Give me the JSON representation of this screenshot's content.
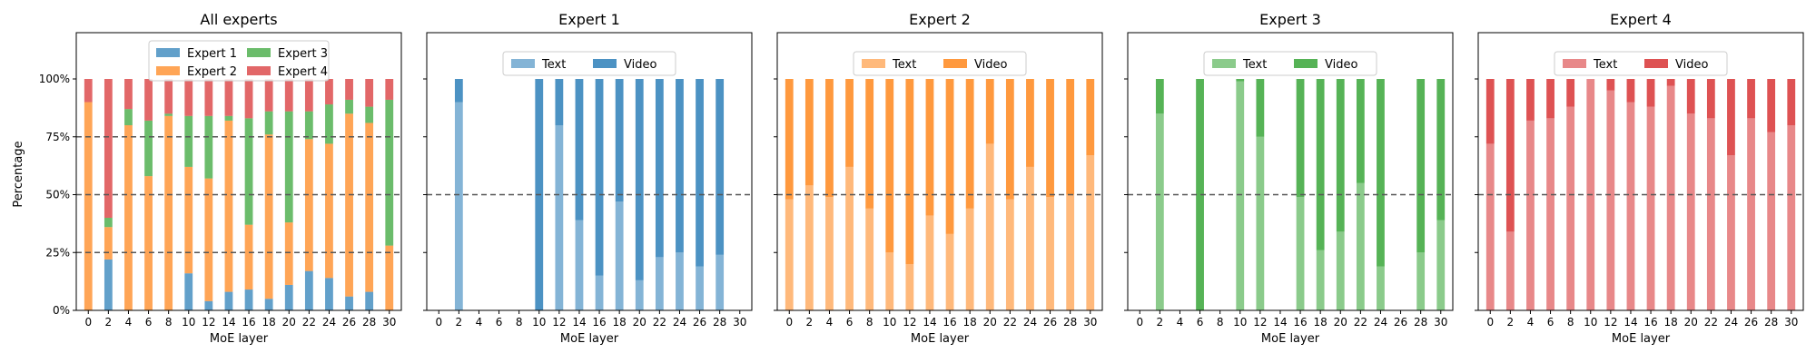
{
  "figure": {
    "ylabel": "Percentage"
  },
  "colors": {
    "expert1": "#1f77b4",
    "expert2": "#ff7f0e",
    "expert3": "#2ca02c",
    "expert4": "#d62728"
  },
  "chart_data": [
    {
      "type": "bar",
      "stacked": true,
      "title": "All experts",
      "xlabel": "MoE layer",
      "ylabel": "Percentage",
      "ylim": [
        0,
        1.2
      ],
      "yticks": [
        "0%",
        "25%",
        "50%",
        "75%",
        "100%"
      ],
      "xticks": [
        "0",
        "2",
        "4",
        "6",
        "8",
        "10",
        "12",
        "14",
        "16",
        "18",
        "20",
        "22",
        "24",
        "26",
        "28",
        "30"
      ],
      "x": [
        0,
        1,
        2,
        3,
        4,
        5,
        6,
        7,
        8,
        9,
        10,
        11,
        12,
        13,
        14,
        15,
        16,
        17,
        18,
        19,
        20,
        21,
        22,
        23,
        24,
        25,
        26,
        27,
        28,
        29,
        30,
        31
      ],
      "legend": {
        "placement": "top-center",
        "columns": 2,
        "entries": [
          "Expert 1",
          "Expert 2",
          "Expert 3",
          "Expert 4"
        ]
      },
      "series": [
        {
          "name": "Expert 1",
          "color": "#1f77b4",
          "values": [
            0,
            0,
            0.22,
            0,
            0,
            0,
            0,
            0,
            0,
            0,
            0.16,
            0,
            0.04,
            0,
            0.08,
            0,
            0.09,
            0,
            0.05,
            0,
            0.11,
            0,
            0.17,
            0,
            0.14,
            0,
            0.06,
            0,
            0.08,
            0,
            0,
            0
          ]
        },
        {
          "name": "Expert 2",
          "color": "#ff7f0e",
          "values": [
            0.9,
            0,
            0.14,
            0,
            0.8,
            0,
            0.58,
            0,
            0.84,
            0,
            0.46,
            0,
            0.53,
            0,
            0.74,
            0,
            0.28,
            0,
            0.71,
            0,
            0.27,
            0,
            0.57,
            0,
            0.58,
            0,
            0.79,
            0,
            0.73,
            0,
            0.28,
            0
          ]
        },
        {
          "name": "Expert 3",
          "color": "#2ca02c",
          "values": [
            0,
            0,
            0.04,
            0,
            0.07,
            0,
            0.24,
            0,
            0.01,
            0,
            0.22,
            0,
            0.27,
            0,
            0.02,
            0,
            0.46,
            0,
            0.1,
            0,
            0.48,
            0,
            0.12,
            0,
            0.17,
            0,
            0.06,
            0,
            0.07,
            0,
            0.63,
            0
          ]
        },
        {
          "name": "Expert 4",
          "color": "#d62728",
          "values": [
            0.1,
            0,
            0.6,
            0,
            0.13,
            0,
            0.18,
            0,
            0.15,
            0,
            0.16,
            0,
            0.16,
            0,
            0.16,
            0,
            0.17,
            0,
            0.14,
            0,
            0.14,
            0,
            0.14,
            0,
            0.11,
            0,
            0.09,
            0,
            0.12,
            0,
            0.09,
            0
          ]
        }
      ]
    },
    {
      "type": "bar",
      "stacked": true,
      "title": "Expert 1",
      "xlabel": "MoE layer",
      "ylim": [
        0,
        1.2
      ],
      "xticks": [
        "0",
        "2",
        "4",
        "6",
        "8",
        "10",
        "12",
        "14",
        "16",
        "18",
        "20",
        "22",
        "24",
        "26",
        "28",
        "30"
      ],
      "x": [
        0,
        1,
        2,
        3,
        4,
        5,
        6,
        7,
        8,
        9,
        10,
        11,
        12,
        13,
        14,
        15,
        16,
        17,
        18,
        19,
        20,
        21,
        22,
        23,
        24,
        25,
        26,
        27,
        28,
        29,
        30,
        31
      ],
      "legend": {
        "placement": "top-center",
        "entries": [
          "Text",
          "Video"
        ]
      },
      "series": [
        {
          "name": "Text",
          "color": "#1f77b4",
          "alpha": 0.55,
          "values": [
            0,
            0,
            0.9,
            0,
            0,
            0,
            0,
            0,
            0,
            0,
            0,
            0,
            0.8,
            0,
            0.39,
            0,
            0.15,
            0,
            0.47,
            0,
            0.13,
            0,
            0.23,
            0,
            0.25,
            0,
            0.19,
            0,
            0.24,
            0,
            0,
            0
          ]
        },
        {
          "name": "Video",
          "color": "#1f77b4",
          "alpha": 0.8,
          "values": [
            0,
            0,
            0.1,
            0,
            0,
            0,
            0,
            0,
            0,
            0,
            1.0,
            0,
            0.2,
            0,
            0.61,
            0,
            0.85,
            0,
            0.53,
            0,
            0.87,
            0,
            0.77,
            0,
            0.75,
            0,
            0.81,
            0,
            0.76,
            0,
            0,
            0
          ]
        }
      ]
    },
    {
      "type": "bar",
      "stacked": true,
      "title": "Expert 2",
      "xlabel": "MoE layer",
      "ylim": [
        0,
        1.2
      ],
      "xticks": [
        "0",
        "2",
        "4",
        "6",
        "8",
        "10",
        "12",
        "14",
        "16",
        "18",
        "20",
        "22",
        "24",
        "26",
        "28",
        "30"
      ],
      "x": [
        0,
        1,
        2,
        3,
        4,
        5,
        6,
        7,
        8,
        9,
        10,
        11,
        12,
        13,
        14,
        15,
        16,
        17,
        18,
        19,
        20,
        21,
        22,
        23,
        24,
        25,
        26,
        27,
        28,
        29,
        30,
        31
      ],
      "legend": {
        "placement": "top-center",
        "entries": [
          "Text",
          "Video"
        ]
      },
      "series": [
        {
          "name": "Text",
          "color": "#ff7f0e",
          "alpha": 0.55,
          "values": [
            0.48,
            0,
            0.54,
            0,
            0.49,
            0,
            0.62,
            0,
            0.44,
            0,
            0.25,
            0,
            0.2,
            0,
            0.41,
            0,
            0.33,
            0,
            0.44,
            0,
            0.72,
            0,
            0.48,
            0,
            0.62,
            0,
            0.49,
            0,
            0.5,
            0,
            0.67,
            0
          ]
        },
        {
          "name": "Video",
          "color": "#ff7f0e",
          "alpha": 0.8,
          "values": [
            0.52,
            0,
            0.46,
            0,
            0.51,
            0,
            0.38,
            0,
            0.56,
            0,
            0.75,
            0,
            0.8,
            0,
            0.59,
            0,
            0.67,
            0,
            0.56,
            0,
            0.28,
            0,
            0.52,
            0,
            0.38,
            0,
            0.51,
            0,
            0.5,
            0,
            0.33,
            0
          ]
        }
      ]
    },
    {
      "type": "bar",
      "stacked": true,
      "title": "Expert 3",
      "xlabel": "MoE layer",
      "ylim": [
        0,
        1.2
      ],
      "xticks": [
        "0",
        "2",
        "4",
        "6",
        "8",
        "10",
        "12",
        "14",
        "16",
        "18",
        "20",
        "22",
        "24",
        "26",
        "28",
        "30"
      ],
      "x": [
        0,
        1,
        2,
        3,
        4,
        5,
        6,
        7,
        8,
        9,
        10,
        11,
        12,
        13,
        14,
        15,
        16,
        17,
        18,
        19,
        20,
        21,
        22,
        23,
        24,
        25,
        26,
        27,
        28,
        29,
        30,
        31
      ],
      "legend": {
        "placement": "top-center",
        "entries": [
          "Text",
          "Video"
        ]
      },
      "series": [
        {
          "name": "Text",
          "color": "#2ca02c",
          "alpha": 0.55,
          "values": [
            0,
            0,
            0.85,
            0,
            0,
            0,
            0,
            0,
            0,
            0,
            0.99,
            0,
            0.75,
            0,
            0,
            0,
            0.49,
            0,
            0.26,
            0,
            0.34,
            0,
            0.55,
            0,
            0.19,
            0,
            0,
            0,
            0.25,
            0,
            0.39,
            0
          ]
        },
        {
          "name": "Video",
          "color": "#2ca02c",
          "alpha": 0.8,
          "values": [
            0,
            0,
            0.15,
            0,
            0,
            0,
            1.0,
            0,
            0,
            0,
            0.01,
            0,
            0.25,
            0,
            0,
            0,
            0.51,
            0,
            0.74,
            0,
            0.66,
            0,
            0.45,
            0,
            0.81,
            0,
            0,
            0,
            0.75,
            0,
            0.61,
            0
          ]
        }
      ]
    },
    {
      "type": "bar",
      "stacked": true,
      "title": "Expert 4",
      "xlabel": "MoE layer",
      "ylim": [
        0,
        1.2
      ],
      "xticks": [
        "0",
        "2",
        "4",
        "6",
        "8",
        "10",
        "12",
        "14",
        "16",
        "18",
        "20",
        "22",
        "24",
        "26",
        "28",
        "30"
      ],
      "x": [
        0,
        1,
        2,
        3,
        4,
        5,
        6,
        7,
        8,
        9,
        10,
        11,
        12,
        13,
        14,
        15,
        16,
        17,
        18,
        19,
        20,
        21,
        22,
        23,
        24,
        25,
        26,
        27,
        28,
        29,
        30,
        31
      ],
      "legend": {
        "placement": "top-center",
        "entries": [
          "Text",
          "Video"
        ]
      },
      "series": [
        {
          "name": "Text",
          "color": "#d62728",
          "alpha": 0.55,
          "values": [
            0.72,
            0,
            0.34,
            0,
            0.82,
            0,
            0.83,
            0,
            0.88,
            0,
            1.0,
            0,
            0.95,
            0,
            0.9,
            0,
            0.88,
            0,
            0.97,
            0,
            0.85,
            0,
            0.83,
            0,
            0.67,
            0,
            0.83,
            0,
            0.77,
            0,
            0.8,
            0
          ]
        },
        {
          "name": "Video",
          "color": "#d62728",
          "alpha": 0.8,
          "values": [
            0.28,
            0,
            0.66,
            0,
            0.18,
            0,
            0.17,
            0,
            0.12,
            0,
            0,
            0,
            0.05,
            0,
            0.1,
            0,
            0.12,
            0,
            0.03,
            0,
            0.15,
            0,
            0.17,
            0,
            0.33,
            0,
            0.17,
            0,
            0.23,
            0,
            0.2,
            0
          ]
        }
      ]
    }
  ]
}
